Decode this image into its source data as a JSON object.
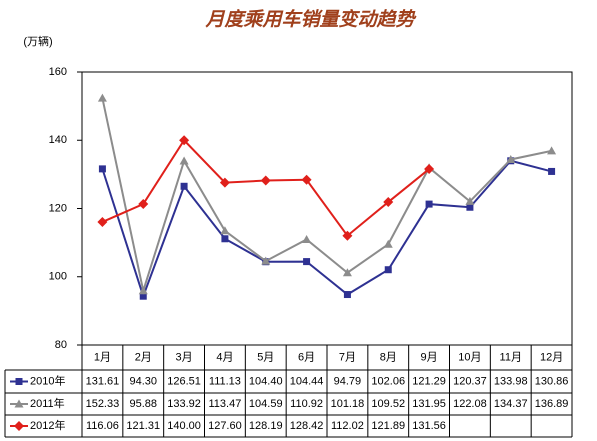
{
  "chart_data": {
    "type": "line",
    "title": "月度乘用车销量变动趋势",
    "y_label": "(万辆)",
    "categories": [
      "1月",
      "2月",
      "3月",
      "4月",
      "5月",
      "6月",
      "7月",
      "8月",
      "9月",
      "10月",
      "11月",
      "12月"
    ],
    "ylim": [
      80,
      160
    ],
    "yticks": [
      80,
      100,
      120,
      140,
      160
    ],
    "grid": false,
    "series": [
      {
        "name": "2010年",
        "color": "#2e3192",
        "marker": "square",
        "values": [
          131.61,
          94.3,
          126.51,
          111.13,
          104.4,
          104.44,
          94.79,
          102.06,
          121.29,
          120.37,
          133.98,
          130.86
        ],
        "value_labels": [
          "131.61",
          "94.30",
          "126.51",
          "111.13",
          "104.40",
          "104.44",
          "94.79",
          "102.06",
          "121.29",
          "120.37",
          "133.98",
          "130.86"
        ]
      },
      {
        "name": "2011年",
        "color": "#8c8c8c",
        "marker": "triangle",
        "values": [
          152.33,
          95.88,
          133.92,
          113.47,
          104.59,
          110.92,
          101.18,
          109.52,
          131.95,
          122.08,
          134.37,
          136.89
        ],
        "value_labels": [
          "152.33",
          "95.88",
          "133.92",
          "113.47",
          "104.59",
          "110.92",
          "101.18",
          "109.52",
          "131.95",
          "122.08",
          "134.37",
          "136.89"
        ]
      },
      {
        "name": "2012年",
        "color": "#e0201b",
        "marker": "diamond",
        "values": [
          116.06,
          121.31,
          140.0,
          127.6,
          128.19,
          128.42,
          112.02,
          121.89,
          131.56,
          null,
          null,
          null
        ],
        "value_labels": [
          "116.06",
          "121.31",
          "140.00",
          "127.60",
          "128.19",
          "128.42",
          "112.02",
          "121.89",
          "131.56",
          null,
          null,
          null
        ]
      }
    ]
  }
}
